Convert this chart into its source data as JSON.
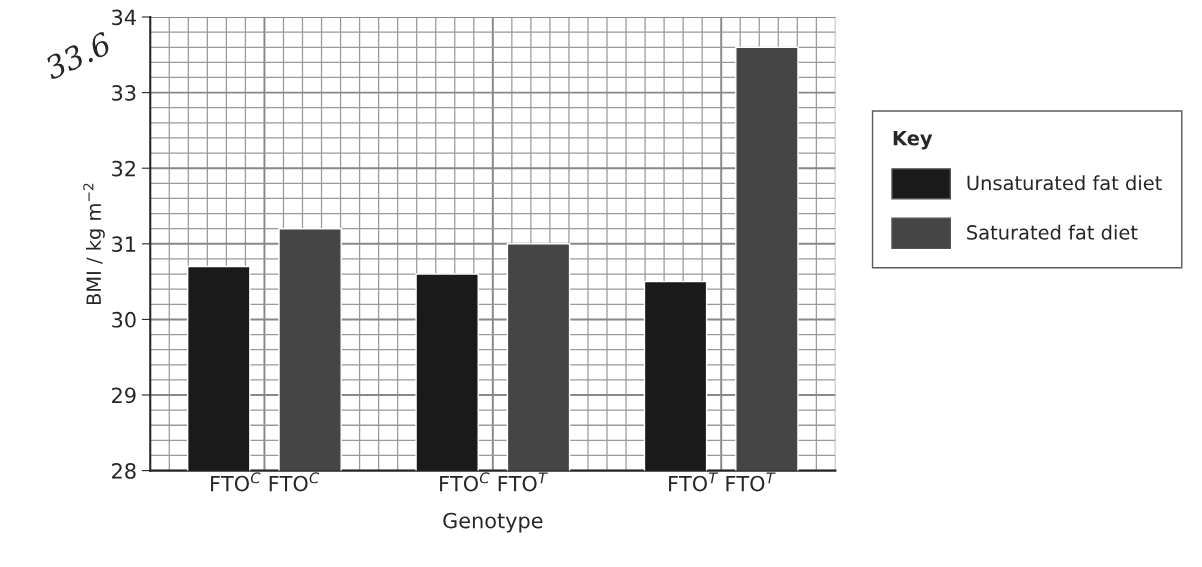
{
  "chart_data": {
    "type": "bar",
    "xlabel": "Genotype",
    "ylabel": "BMI / kg m$^{−2}$",
    "legend_title": "Key",
    "categories": [
      "FTO$^{C}$ FTO$^{C}$",
      "FTO$^{C}$ FTO$^{T}$",
      "FTO$^{T}$ FTO$^{T}$"
    ],
    "series": [
      {
        "name": "Unsaturated fat diet",
        "color": "#1a1a1a",
        "values": [
          30.7,
          30.6,
          30.5
        ]
      },
      {
        "name": "Saturated fat diet",
        "color": "#454545",
        "values": [
          31.2,
          31.0,
          33.6
        ]
      }
    ],
    "ylim": [
      28,
      34
    ],
    "yticks": [
      28,
      29,
      30,
      31,
      32,
      33,
      34
    ],
    "grid": true,
    "legend": "right",
    "annotations": [
      "33.6"
    ]
  }
}
